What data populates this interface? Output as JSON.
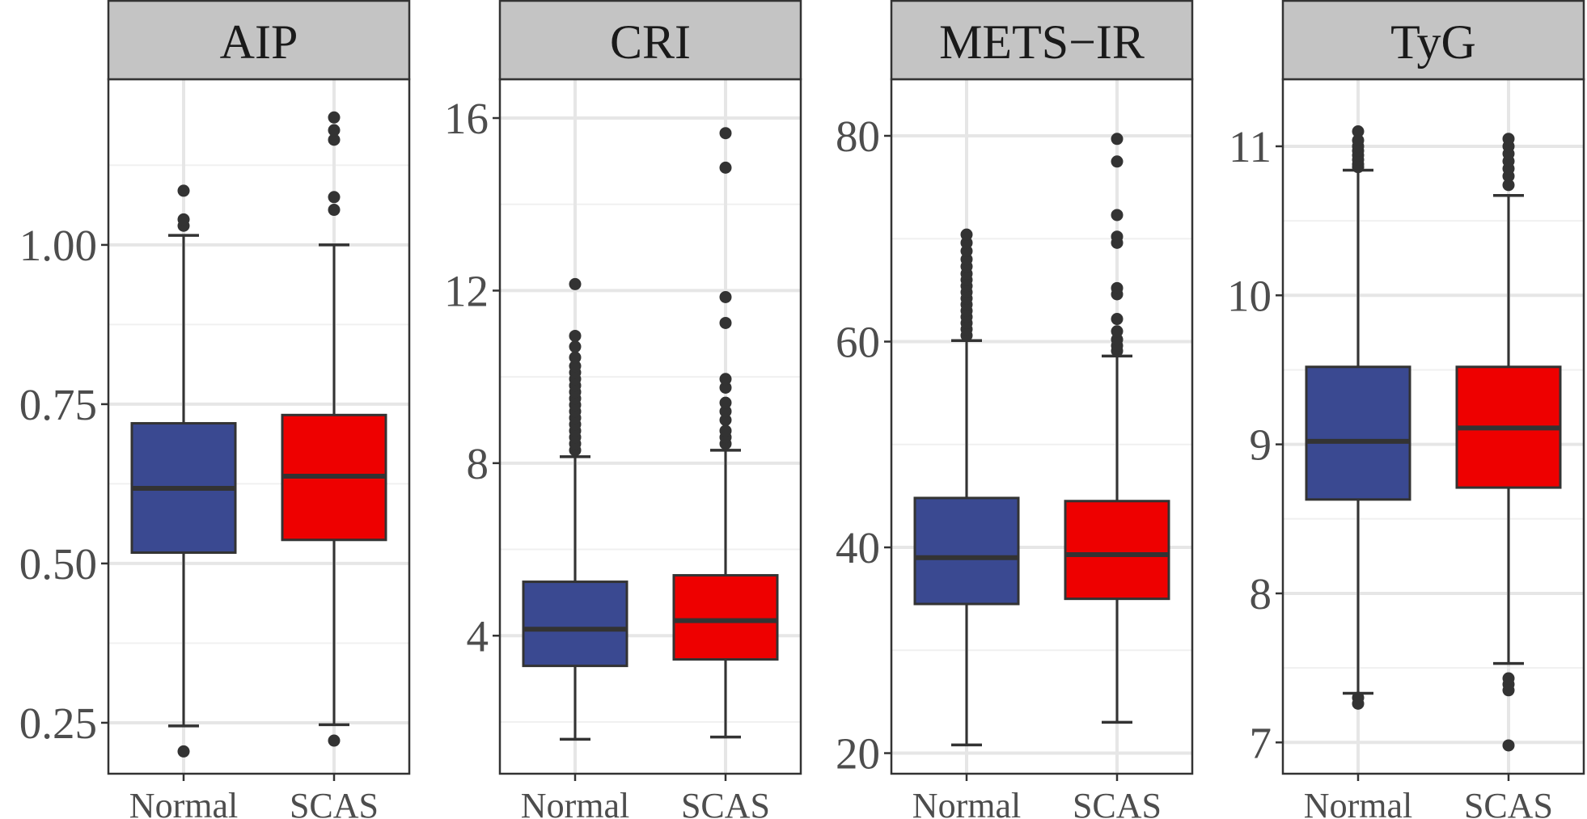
{
  "chart_data": [
    {
      "type": "box",
      "title": "AIP",
      "categories": [
        "Normal",
        "SCAS"
      ],
      "ylim": [
        0.17,
        1.26
      ],
      "yticks": [
        0.25,
        0.5,
        0.75,
        1.0
      ],
      "ytick_labels": [
        "0.25",
        "0.50",
        "0.75",
        "1.00"
      ],
      "minor_gridlines": [
        0.375,
        0.625,
        0.875,
        1.125
      ],
      "series": [
        {
          "name": "Normal",
          "color": "#3a4991",
          "lower_whisker": 0.245,
          "q1": 0.517,
          "median": 0.618,
          "q3": 0.72,
          "upper_whisker": 1.015,
          "outliers": [
            0.205,
            1.03,
            1.04,
            1.085
          ]
        },
        {
          "name": "SCAS",
          "color": "#ee0000",
          "lower_whisker": 0.247,
          "q1": 0.537,
          "median": 0.637,
          "q3": 0.733,
          "upper_whisker": 1.0,
          "outliers": [
            0.222,
            1.055,
            1.075,
            1.165,
            1.18,
            1.2
          ]
        }
      ]
    },
    {
      "type": "box",
      "title": "CRI",
      "categories": [
        "Normal",
        "SCAS"
      ],
      "ylim": [
        0.8,
        16.9
      ],
      "yticks": [
        4,
        8,
        12,
        16
      ],
      "ytick_labels": [
        "4",
        "8",
        "12",
        "16"
      ],
      "minor_gridlines": [
        2,
        6,
        10,
        14
      ],
      "series": [
        {
          "name": "Normal",
          "color": "#3a4991",
          "lower_whisker": 1.6,
          "q1": 3.3,
          "median": 4.15,
          "q3": 5.25,
          "upper_whisker": 8.15,
          "outliers": [
            8.3,
            8.45,
            8.6,
            8.75,
            8.9,
            9.05,
            9.2,
            9.35,
            9.5,
            9.65,
            9.8,
            9.95,
            10.1,
            10.25,
            10.45,
            10.7,
            10.95,
            12.15
          ]
        },
        {
          "name": "SCAS",
          "color": "#ee0000",
          "lower_whisker": 1.65,
          "q1": 3.45,
          "median": 4.35,
          "q3": 5.4,
          "upper_whisker": 8.3,
          "outliers": [
            8.45,
            8.6,
            8.75,
            9.0,
            9.2,
            9.4,
            9.75,
            9.95,
            11.25,
            11.85,
            14.85,
            15.65
          ]
        }
      ]
    },
    {
      "type": "box",
      "title": "METS−IR",
      "categories": [
        "Normal",
        "SCAS"
      ],
      "ylim": [
        18.0,
        85.5
      ],
      "yticks": [
        20,
        40,
        60,
        80
      ],
      "ytick_labels": [
        "20",
        "40",
        "60",
        "80"
      ],
      "minor_gridlines": [
        30,
        50,
        70
      ],
      "series": [
        {
          "name": "Normal",
          "color": "#3a4991",
          "lower_whisker": 20.8,
          "q1": 34.5,
          "median": 39.0,
          "q3": 44.8,
          "upper_whisker": 60.1,
          "outliers": [
            60.6,
            61.2,
            61.8,
            62.4,
            63.0,
            63.6,
            64.2,
            64.8,
            65.4,
            66.0,
            66.6,
            67.3,
            68.0,
            68.8,
            69.6,
            70.4
          ]
        },
        {
          "name": "SCAS",
          "color": "#ee0000",
          "lower_whisker": 23.0,
          "q1": 35.0,
          "median": 39.3,
          "q3": 44.5,
          "upper_whisker": 58.6,
          "outliers": [
            59.1,
            59.6,
            60.2,
            61.0,
            62.2,
            64.6,
            65.2,
            69.6,
            70.2,
            72.3,
            77.5,
            79.7
          ]
        }
      ]
    },
    {
      "type": "box",
      "title": "TyG",
      "categories": [
        "Normal",
        "SCAS"
      ],
      "ylim": [
        6.79,
        11.45
      ],
      "yticks": [
        7,
        8,
        9,
        10,
        11
      ],
      "ytick_labels": [
        "7",
        "8",
        "9",
        "10",
        "11"
      ],
      "minor_gridlines": [
        7.5,
        8.5,
        9.5,
        10.5
      ],
      "series": [
        {
          "name": "Normal",
          "color": "#3a4991",
          "lower_whisker": 7.33,
          "q1": 8.63,
          "median": 9.02,
          "q3": 9.52,
          "upper_whisker": 10.84,
          "outliers": [
            7.26,
            7.3,
            10.86,
            10.88,
            10.91,
            10.94,
            10.97,
            11.0,
            11.04,
            11.1
          ]
        },
        {
          "name": "SCAS",
          "color": "#ee0000",
          "lower_whisker": 7.53,
          "q1": 8.71,
          "median": 9.11,
          "q3": 9.52,
          "upper_whisker": 10.67,
          "outliers": [
            6.98,
            7.35,
            7.39,
            7.43,
            10.74,
            10.8,
            10.85,
            10.9,
            10.95,
            11.0,
            11.05
          ]
        }
      ]
    }
  ]
}
